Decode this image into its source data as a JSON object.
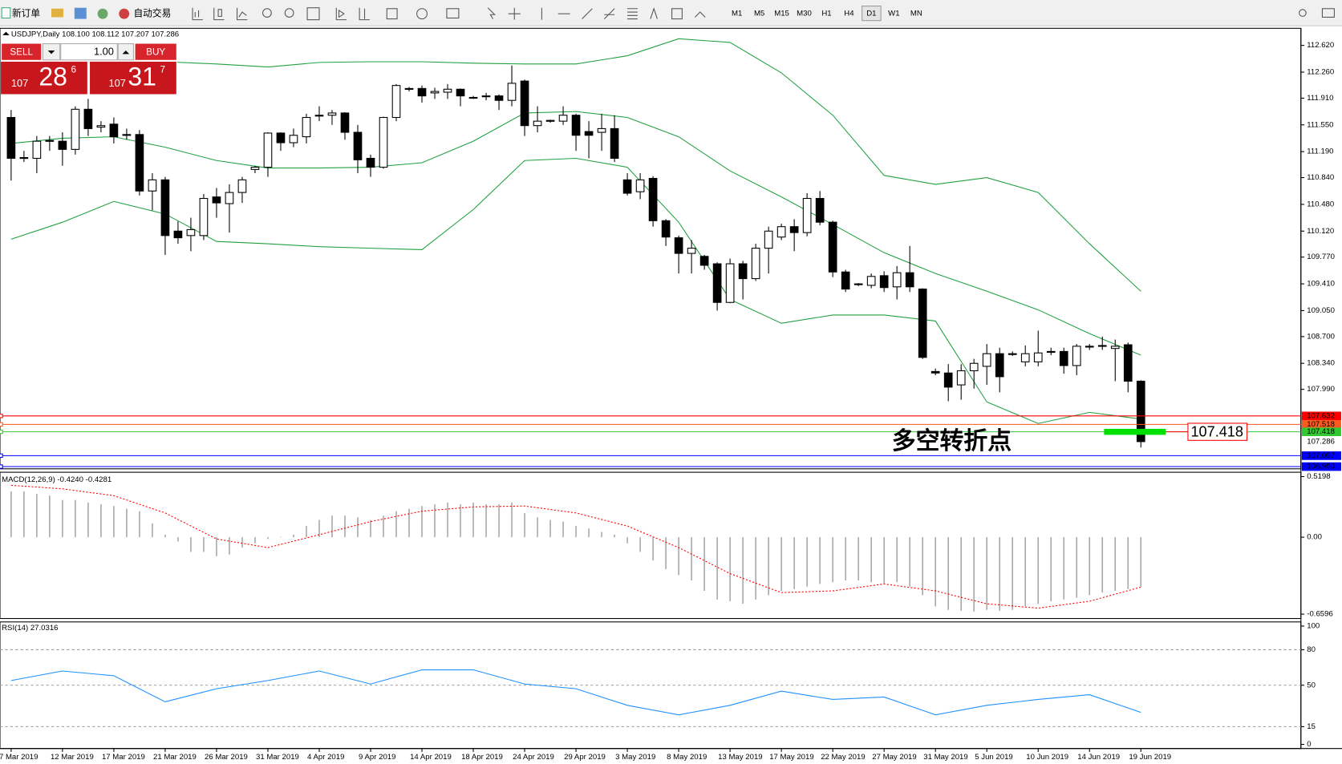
{
  "toolbar": {
    "new_order": "新订单",
    "auto_trading": "自动交易",
    "timeframes": [
      "M1",
      "M5",
      "M15",
      "M30",
      "H1",
      "H4",
      "D1",
      "W1",
      "MN"
    ],
    "active_timeframe": "D1"
  },
  "trade_panel": {
    "sell": "SELL",
    "buy": "BUY",
    "lot": "1.00",
    "bid": [
      "107",
      "28",
      "6"
    ],
    "ask": [
      "107",
      "31",
      "7"
    ]
  },
  "chart_data": {
    "type": "candlestick",
    "header": "USDJPY,Daily  108.100 108.112 107.207 107.286",
    "dates": [
      "7 Mar 2019",
      "12 Mar 2019",
      "17 Mar 2019",
      "21 Mar 2019",
      "26 Mar 2019",
      "31 Mar 2019",
      "4 Apr 2019",
      "9 Apr 2019",
      "14 Apr 2019",
      "18 Apr 2019",
      "24 Apr 2019",
      "29 Apr 2019",
      "3 May 2019",
      "8 May 2019",
      "13 May 2019",
      "17 May 2019",
      "22 May 2019",
      "27 May 2019",
      "31 May 2019",
      "5 Jun 2019",
      "10 Jun 2019",
      "14 Jun 2019",
      "19 Jun 2019"
    ],
    "candles": [
      [
        111.65,
        111.75,
        110.8,
        111.1
      ],
      [
        111.1,
        111.2,
        111.05,
        111.11
      ],
      [
        111.1,
        111.4,
        110.9,
        111.33
      ],
      [
        111.33,
        111.4,
        111.2,
        111.34
      ],
      [
        111.33,
        111.45,
        111.0,
        111.22
      ],
      [
        111.22,
        111.8,
        111.15,
        111.76
      ],
      [
        111.76,
        111.9,
        111.4,
        111.5
      ],
      [
        111.52,
        111.6,
        111.45,
        111.54
      ],
      [
        111.56,
        111.65,
        111.3,
        111.39
      ],
      [
        111.41,
        111.5,
        111.35,
        111.42
      ],
      [
        111.42,
        111.48,
        110.6,
        110.66
      ],
      [
        110.66,
        110.9,
        110.4,
        110.81
      ],
      [
        110.81,
        110.85,
        109.8,
        110.06
      ],
      [
        110.12,
        110.25,
        109.95,
        110.03
      ],
      [
        110.06,
        110.3,
        109.85,
        110.14
      ],
      [
        110.06,
        110.62,
        110.0,
        110.56
      ],
      [
        110.58,
        110.7,
        110.3,
        110.5
      ],
      [
        110.49,
        110.75,
        110.1,
        110.64
      ],
      [
        110.64,
        110.85,
        110.5,
        110.81
      ],
      [
        110.95,
        111.0,
        110.9,
        110.98
      ],
      [
        110.98,
        111.45,
        110.85,
        111.44
      ],
      [
        111.44,
        111.45,
        111.2,
        111.31
      ],
      [
        111.31,
        111.5,
        111.25,
        111.41
      ],
      [
        111.39,
        111.7,
        111.3,
        111.65
      ],
      [
        111.67,
        111.8,
        111.6,
        111.68
      ],
      [
        111.68,
        111.75,
        111.55,
        111.71
      ],
      [
        111.71,
        111.72,
        111.35,
        111.45
      ],
      [
        111.45,
        111.55,
        110.9,
        111.08
      ],
      [
        111.1,
        111.15,
        110.85,
        110.98
      ],
      [
        110.98,
        111.66,
        110.96,
        111.65
      ],
      [
        111.65,
        112.1,
        111.6,
        112.08
      ],
      [
        112.03,
        112.06,
        112.0,
        112.04
      ],
      [
        112.04,
        112.08,
        111.85,
        111.94
      ],
      [
        111.98,
        112.05,
        111.9,
        112.0
      ],
      [
        111.99,
        112.1,
        111.9,
        112.03
      ],
      [
        112.03,
        112.04,
        111.8,
        111.94
      ],
      [
        111.92,
        111.94,
        111.9,
        111.92
      ],
      [
        111.94,
        111.98,
        111.88,
        111.94
      ],
      [
        111.94,
        111.96,
        111.75,
        111.88
      ],
      [
        111.88,
        112.35,
        111.8,
        112.11
      ],
      [
        112.14,
        112.16,
        111.4,
        111.54
      ],
      [
        111.54,
        111.8,
        111.45,
        111.6
      ],
      [
        111.6,
        111.62,
        111.58,
        111.61
      ],
      [
        111.6,
        111.8,
        111.55,
        111.68
      ],
      [
        111.68,
        111.7,
        111.2,
        111.41
      ],
      [
        111.46,
        111.6,
        111.1,
        111.41
      ],
      [
        111.45,
        111.7,
        111.2,
        111.5
      ],
      [
        111.5,
        111.68,
        111.05,
        111.1
      ],
      [
        110.81,
        110.9,
        110.6,
        110.63
      ],
      [
        110.65,
        110.9,
        110.55,
        110.81
      ],
      [
        110.83,
        110.86,
        110.18,
        110.26
      ],
      [
        110.26,
        110.28,
        109.92,
        110.04
      ],
      [
        110.03,
        110.06,
        109.55,
        109.82
      ],
      [
        109.82,
        110.0,
        109.55,
        109.89
      ],
      [
        109.78,
        109.8,
        109.6,
        109.66
      ],
      [
        109.68,
        109.7,
        109.05,
        109.16
      ],
      [
        109.16,
        109.75,
        109.15,
        109.68
      ],
      [
        109.68,
        109.72,
        109.2,
        109.48
      ],
      [
        109.48,
        109.95,
        109.45,
        109.89
      ],
      [
        109.89,
        110.18,
        109.55,
        110.12
      ],
      [
        110.04,
        110.22,
        110.0,
        110.18
      ],
      [
        110.18,
        110.28,
        109.85,
        110.1
      ],
      [
        110.1,
        110.63,
        110.05,
        110.56
      ],
      [
        110.56,
        110.66,
        110.2,
        110.24
      ],
      [
        110.24,
        110.26,
        109.5,
        109.57
      ],
      [
        109.57,
        109.6,
        109.3,
        109.34
      ],
      [
        109.4,
        109.42,
        109.38,
        109.41
      ],
      [
        109.39,
        109.55,
        109.35,
        109.51
      ],
      [
        109.52,
        109.58,
        109.3,
        109.36
      ],
      [
        109.37,
        109.65,
        109.2,
        109.56
      ],
      [
        109.56,
        109.92,
        109.3,
        109.37
      ],
      [
        109.34,
        109.35,
        108.4,
        108.42
      ],
      [
        108.23,
        108.27,
        108.18,
        108.21
      ],
      [
        108.21,
        108.33,
        107.83,
        108.02
      ],
      [
        108.05,
        108.33,
        107.85,
        108.24
      ],
      [
        108.24,
        108.4,
        108.0,
        108.34
      ],
      [
        108.3,
        108.6,
        108.05,
        108.47
      ],
      [
        108.47,
        108.55,
        107.95,
        108.16
      ],
      [
        108.46,
        108.5,
        108.44,
        108.47
      ],
      [
        108.36,
        108.58,
        108.3,
        108.47
      ],
      [
        108.36,
        108.78,
        108.3,
        108.48
      ],
      [
        108.49,
        108.55,
        108.45,
        108.5
      ],
      [
        108.5,
        108.55,
        108.2,
        108.31
      ],
      [
        108.31,
        108.6,
        108.18,
        108.57
      ],
      [
        108.56,
        108.6,
        108.52,
        108.57
      ],
      [
        108.57,
        108.7,
        108.52,
        108.58
      ],
      [
        108.54,
        108.66,
        108.1,
        108.57
      ],
      [
        108.59,
        108.62,
        107.95,
        108.1
      ],
      [
        108.1,
        108.112,
        107.207,
        107.286
      ]
    ],
    "ylim": [
      106.92,
      112.85
    ],
    "yticks": [
      {
        "value": 112.62,
        "label": "112.620"
      },
      {
        "value": 112.26,
        "label": "112.260"
      },
      {
        "value": 111.91,
        "label": "111.910"
      },
      {
        "value": 111.55,
        "label": "111.550"
      },
      {
        "value": 111.19,
        "label": "111.190"
      },
      {
        "value": 110.84,
        "label": "110.840"
      },
      {
        "value": 110.48,
        "label": "110.480"
      },
      {
        "value": 110.12,
        "label": "110.120"
      },
      {
        "value": 109.77,
        "label": "109.770"
      },
      {
        "value": 109.41,
        "label": "109.410"
      },
      {
        "value": 109.05,
        "label": "109.050"
      },
      {
        "value": 108.7,
        "label": "108.700"
      },
      {
        "value": 108.34,
        "label": "108.340"
      },
      {
        "value": 107.99,
        "label": "107.990"
      }
    ],
    "sample_x": [
      0,
      4,
      8,
      12,
      16,
      20,
      24,
      28,
      32,
      36,
      40,
      44,
      48,
      52,
      56,
      60,
      64,
      68,
      72,
      76,
      80,
      84,
      88
    ],
    "bollinger": {
      "color": "#22a040",
      "upper": [
        112.52,
        112.48,
        112.45,
        112.4,
        112.37,
        112.33,
        112.39,
        112.4,
        112.4,
        112.38,
        112.37,
        112.37,
        112.48,
        112.71,
        112.66,
        112.25,
        111.68,
        110.87,
        110.75,
        110.84,
        110.64,
        109.95,
        109.31
      ],
      "middle": [
        111.3,
        111.37,
        111.39,
        111.25,
        111.07,
        110.97,
        110.97,
        110.98,
        111.04,
        111.33,
        111.71,
        111.73,
        111.65,
        111.39,
        110.93,
        110.58,
        110.21,
        109.83,
        109.55,
        109.31,
        109.06,
        108.74,
        108.45
      ],
      "lower": [
        110.01,
        110.24,
        110.52,
        110.35,
        109.98,
        109.95,
        109.91,
        109.89,
        109.87,
        110.41,
        111.07,
        111.1,
        110.98,
        110.24,
        109.2,
        108.88,
        108.99,
        108.99,
        108.91,
        107.82,
        107.53,
        107.68,
        107.59
      ]
    },
    "price_lines": [
      {
        "price": 107.632,
        "color": "#ff0000",
        "show_line": true
      },
      {
        "price": 107.518,
        "color": "#ff5a1e",
        "show_line": true
      },
      {
        "price": 107.418,
        "color": "#32c832",
        "show_line": true
      },
      {
        "price": 107.286,
        "color": "#ffffff",
        "show_line": false
      },
      {
        "price": 107.097,
        "color": "#0000ff",
        "show_line": true
      },
      {
        "price": {
          "value": 106.95,
          "label": "106.950"
        },
        "color": "#0000ff",
        "show_line": true
      }
    ],
    "annotation": {
      "text": "多空转折点",
      "price": 107.418,
      "color": "#22b022",
      "label_color": "#ff0000"
    },
    "macd": {
      "header": "MACD(12,26,9) -0.4240 -0.4281",
      "ylim": [
        -0.697,
        0.557
      ],
      "yticks": [
        0.5198,
        {
          "value": 0,
          "label": "0.00"
        },
        -0.6596
      ],
      "histogram_color": "#a8a8a8",
      "signal_color": "#ff0000",
      "histogram": [
        0.393,
        0.393,
        0.371,
        0.356,
        0.319,
        0.319,
        0.297,
        0.282,
        0.267,
        0.245,
        0.223,
        0.119,
        0.022,
        -0.037,
        -0.126,
        -0.126,
        -0.163,
        -0.148,
        -0.089,
        -0.052,
        -0.015,
        0.004,
        0.022,
        0.096,
        0.148,
        0.185,
        0.185,
        0.171,
        0.148,
        0.185,
        0.223,
        0.245,
        0.267,
        0.282,
        0.297,
        0.282,
        0.297,
        0.282,
        0.282,
        0.297,
        0.208,
        0.171,
        0.148,
        0.134,
        0.096,
        0.074,
        0.045,
        0.022,
        -0.052,
        -0.126,
        -0.2,
        -0.274,
        -0.326,
        -0.371,
        -0.46,
        -0.534,
        -0.549,
        -0.571,
        -0.534,
        -0.497,
        -0.46,
        -0.445,
        -0.423,
        -0.401,
        -0.386,
        -0.371,
        -0.371,
        -0.386,
        -0.401,
        -0.386,
        -0.423,
        -0.497,
        -0.593,
        -0.623,
        -0.631,
        -0.638,
        -0.623,
        -0.631,
        -0.623,
        -0.593,
        -0.571,
        -0.549,
        -0.534,
        -0.519,
        -0.497,
        -0.475,
        -0.46,
        -0.445,
        -0.424
      ],
      "signal": [
        0.445,
        0.415,
        0.356,
        0.208,
        -0.015,
        -0.089,
        0.022,
        0.134,
        0.223,
        0.26,
        0.267,
        0.208,
        0.096,
        -0.089,
        -0.312,
        -0.475,
        -0.46,
        -0.401,
        -0.46,
        -0.571,
        -0.608,
        -0.549,
        -0.428
      ]
    },
    "rsi": {
      "header": "RSI(14) 27.0316",
      "ylim": [
        -3.5,
        103.5
      ],
      "yticks": [
        100,
        80,
        50,
        15,
        0
      ],
      "color": "#1e90ff",
      "values": [
        54,
        62,
        58,
        36,
        47,
        54,
        62,
        51,
        63,
        63,
        51,
        47,
        33,
        25,
        33,
        45,
        38,
        40,
        25,
        33,
        38,
        42,
        27.03
      ]
    }
  }
}
